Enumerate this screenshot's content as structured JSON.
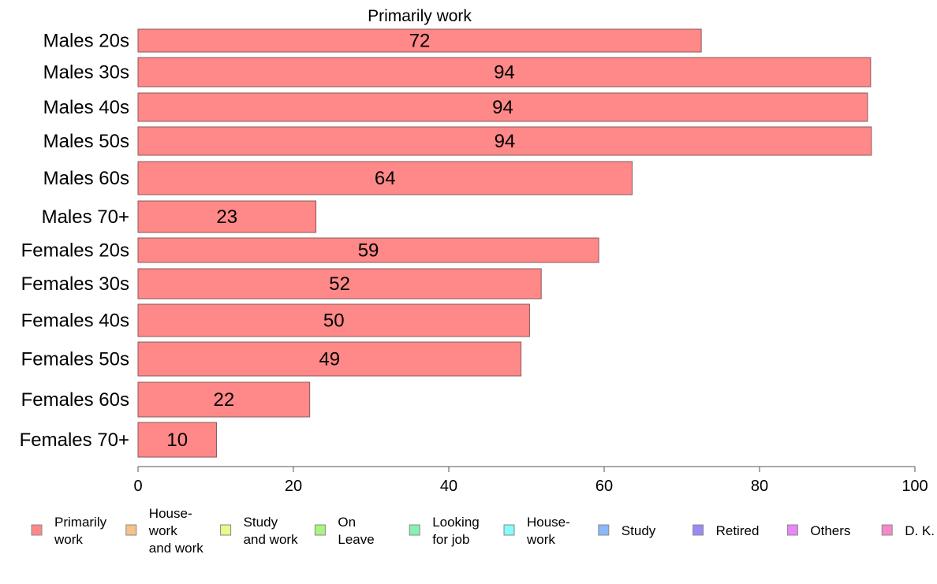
{
  "chart_data": {
    "type": "bar",
    "orientation": "horizontal",
    "title": "Primarily work",
    "xlabel": "",
    "ylabel": "",
    "xlim": [
      0,
      100
    ],
    "x_ticks": [
      0,
      20,
      40,
      60,
      80,
      100
    ],
    "grid": false,
    "categories": [
      "Males 20s",
      "Males 30s",
      "Males 40s",
      "Males 50s",
      "Males 60s",
      "Males 70+",
      "Females 20s",
      "Females 30s",
      "Females 40s",
      "Females 50s",
      "Females 60s",
      "Females 70+"
    ],
    "values": [
      72.5,
      94.3,
      93.9,
      94.4,
      63.6,
      22.9,
      59.3,
      51.9,
      50.4,
      49.3,
      22.1,
      10.1
    ],
    "data_labels": [
      "72",
      "94",
      "94",
      "94",
      "64",
      "23",
      "59",
      "52",
      "50",
      "49",
      "22",
      "10"
    ],
    "bar_color": "#FF8888",
    "legend_position": "bottom",
    "legend": [
      {
        "lines": [
          "Primarily",
          "work"
        ],
        "color": "#FF8888"
      },
      {
        "lines": [
          "House-",
          "work",
          "and work"
        ],
        "color": "#F7C287"
      },
      {
        "lines": [
          "Study",
          "and work"
        ],
        "color": "#E9F98A"
      },
      {
        "lines": [
          "On",
          "Leave"
        ],
        "color": "#A9F47E"
      },
      {
        "lines": [
          "Looking",
          "for job"
        ],
        "color": "#86F1B4"
      },
      {
        "lines": [
          "House-",
          "work"
        ],
        "color": "#85FBFB"
      },
      {
        "lines": [
          "Study"
        ],
        "color": "#8AB8F8"
      },
      {
        "lines": [
          "Retired"
        ],
        "color": "#9B8AF6"
      },
      {
        "lines": [
          "Others"
        ],
        "color": "#E888F6"
      },
      {
        "lines": [
          "D. K."
        ],
        "color": "#F888CB"
      }
    ]
  }
}
